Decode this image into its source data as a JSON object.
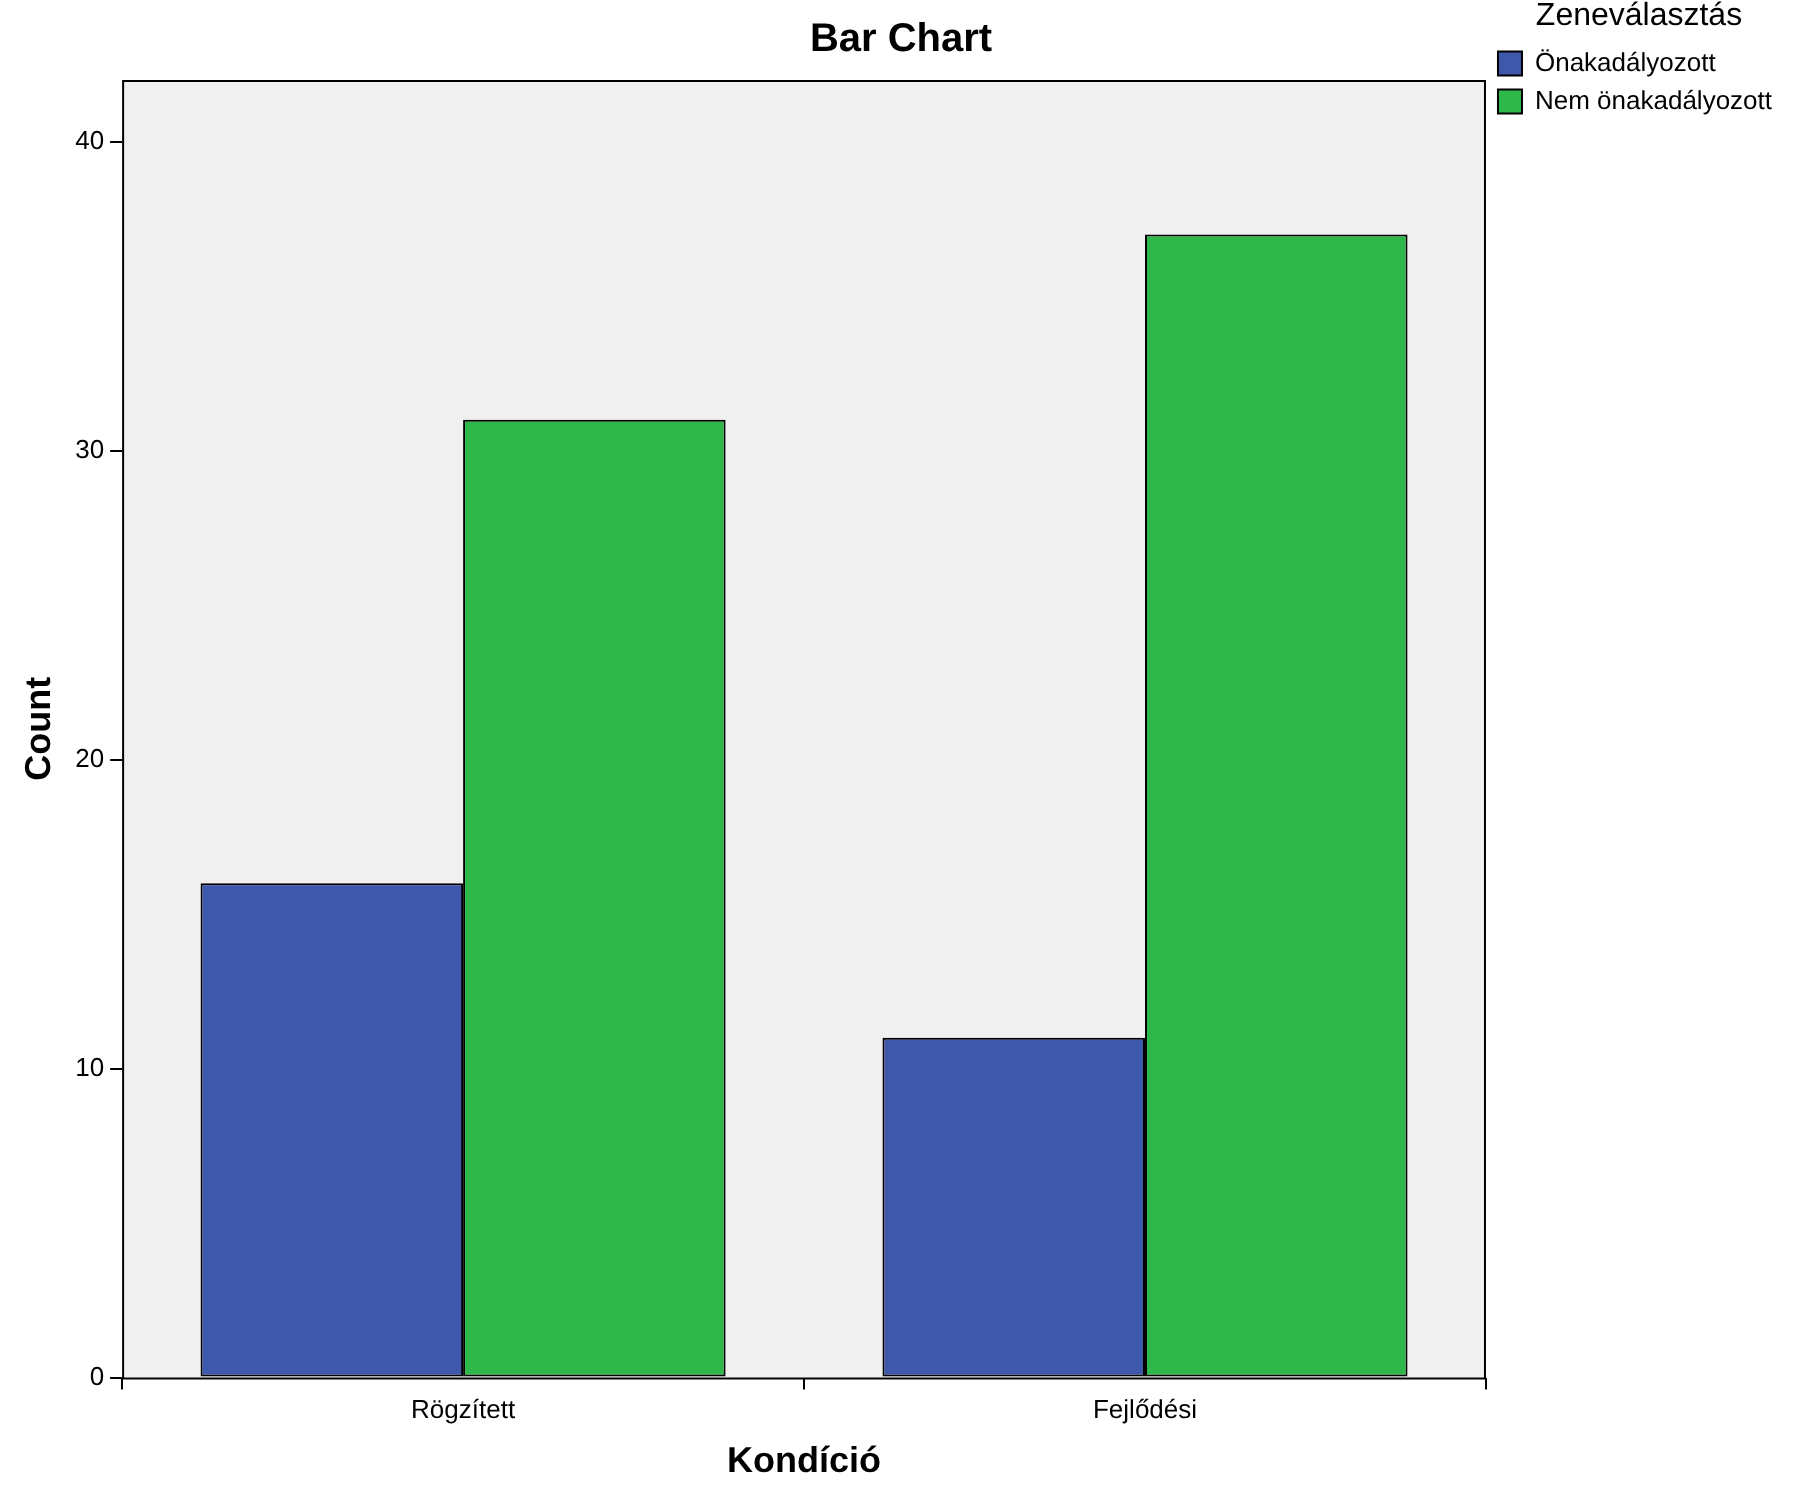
{
  "chart_data": {
    "type": "bar",
    "title": "Bar Chart",
    "xlabel": "Kondíció",
    "ylabel": "Count",
    "legend_title": "Zeneválasztás",
    "categories": [
      "Rögzített",
      "Fejlődési"
    ],
    "series": [
      {
        "name": "Önakadályozott",
        "color": "#3e58ac",
        "values": [
          16,
          11
        ]
      },
      {
        "name": "Nem önakadályozott",
        "color": "#2fb84a",
        "values": [
          31,
          37
        ]
      }
    ],
    "ylim": [
      0,
      42
    ],
    "yticks": [
      0,
      10,
      20,
      30,
      40
    ],
    "grid": false,
    "legend": "top right"
  }
}
